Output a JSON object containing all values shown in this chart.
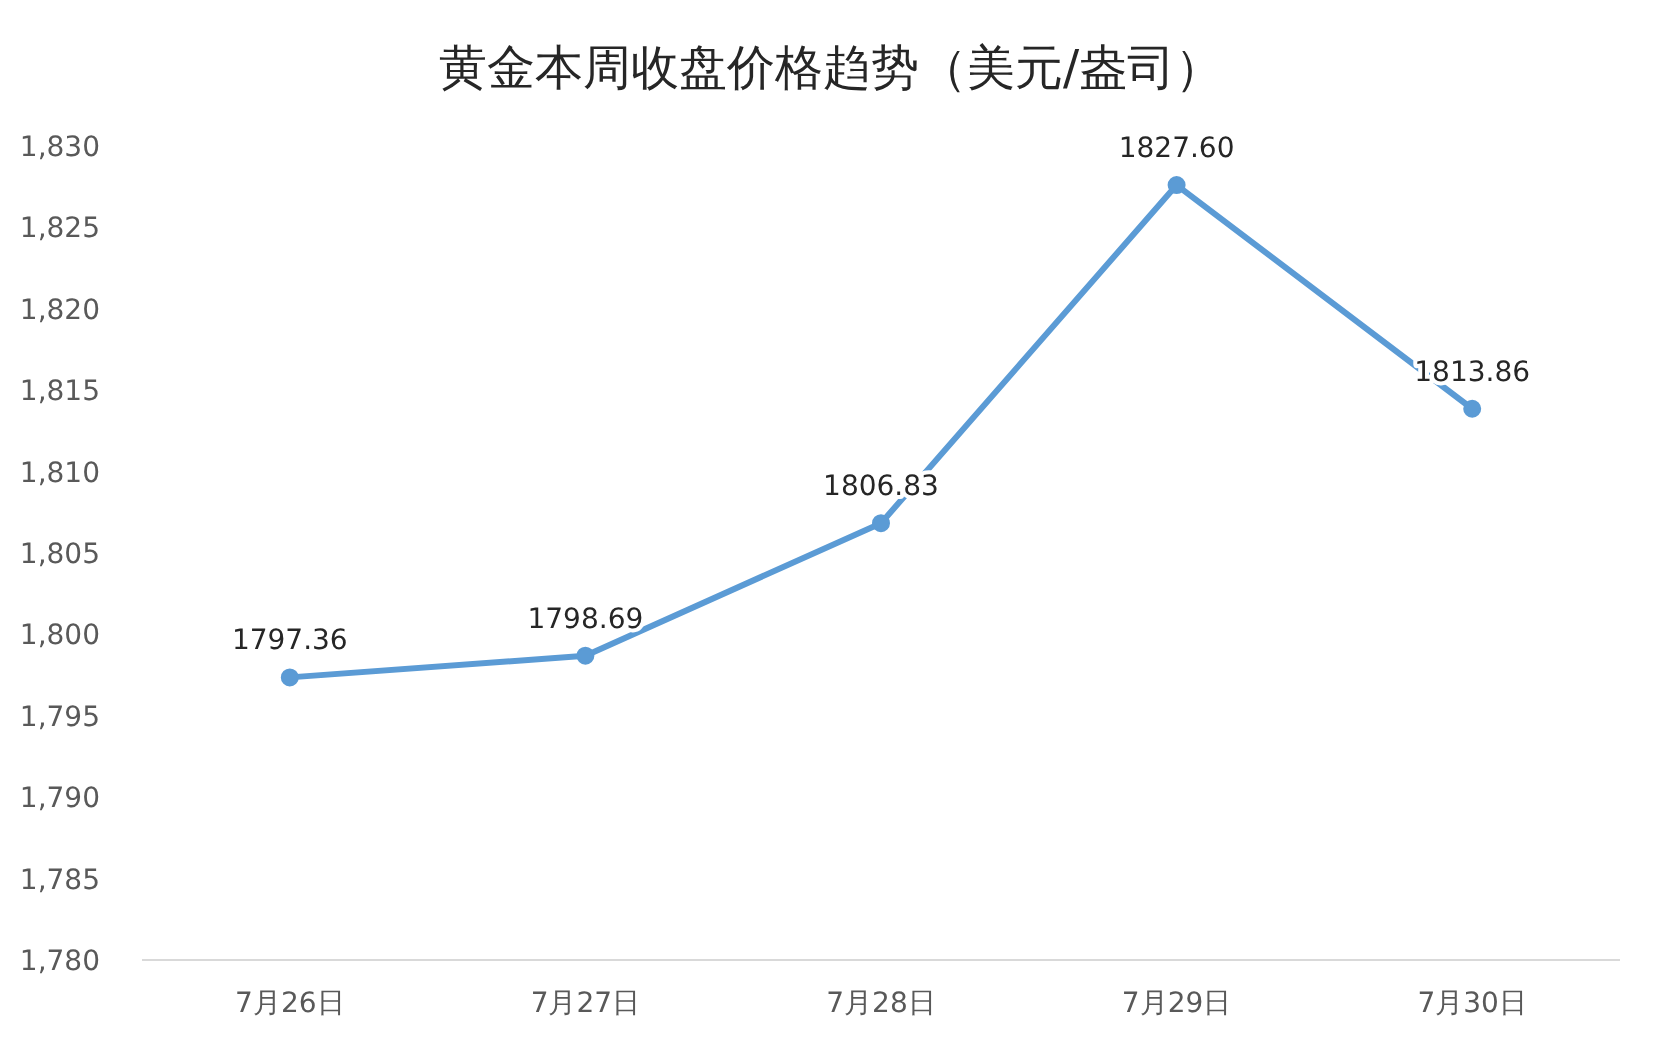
{
  "chart_data": {
    "type": "line",
    "title": "黄金本周收盘价格趋势（美元/盎司）",
    "categories": [
      "7月26日",
      "7月27日",
      "7月28日",
      "7月29日",
      "7月30日"
    ],
    "series": [
      {
        "color": "#5b9bd5",
        "values": [
          1797.36,
          1798.69,
          1806.83,
          1827.6,
          1813.86
        ],
        "value_labels": [
          "1797.36",
          "1798.69",
          "1806.83",
          "1827.60",
          "1813.86"
        ]
      }
    ],
    "ylim": [
      1780,
      1830
    ],
    "yticks": [
      {
        "value": 1780,
        "label": "1,780"
      },
      {
        "value": 1785,
        "label": "1,785"
      },
      {
        "value": 1790,
        "label": "1,790"
      },
      {
        "value": 1795,
        "label": "1,795"
      },
      {
        "value": 1800,
        "label": "1,800"
      },
      {
        "value": 1805,
        "label": "1,805"
      },
      {
        "value": 1810,
        "label": "1,810"
      },
      {
        "value": 1815,
        "label": "1,815"
      },
      {
        "value": 1820,
        "label": "1,820"
      },
      {
        "value": 1825,
        "label": "1,825"
      },
      {
        "value": 1830,
        "label": "1,830"
      }
    ],
    "marker": "circle",
    "line_style": "solid",
    "grid": false
  }
}
